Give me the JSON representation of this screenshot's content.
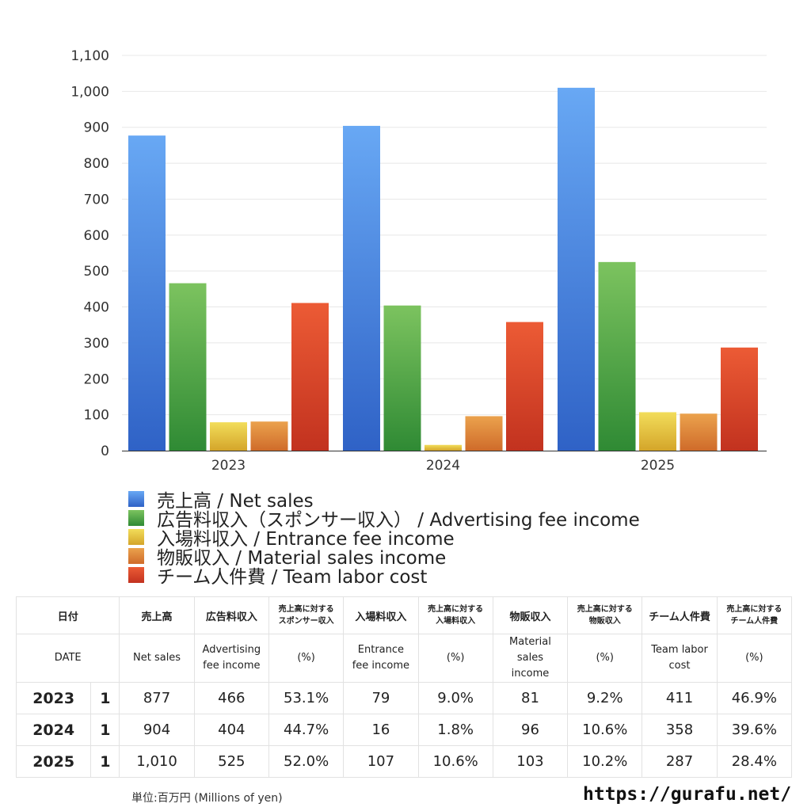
{
  "chart_data": {
    "type": "bar",
    "categories": [
      "2023",
      "2024",
      "2025"
    ],
    "series": [
      {
        "name": "売上高 / Net sales",
        "values": [
          877,
          904,
          1010
        ]
      },
      {
        "name": "広告料収入（スポンサー収入） / Advertising fee income",
        "values": [
          466,
          404,
          525
        ]
      },
      {
        "name": "入場料収入 / Entrance fee income",
        "values": [
          79,
          16,
          107
        ]
      },
      {
        "name": "物販収入 / Material sales income",
        "values": [
          81,
          96,
          103
        ]
      },
      {
        "name": "チーム人件費 / Team labor cost",
        "values": [
          411,
          358,
          287
        ]
      }
    ],
    "colors": [
      [
        "#68a8f4",
        "#2f62c6"
      ],
      [
        "#7cc35f",
        "#2f8a34"
      ],
      [
        "#f2dd5a",
        "#d4a52a"
      ],
      [
        "#eba24d",
        "#cf6b2a"
      ],
      [
        "#ec5b35",
        "#c2321f"
      ]
    ],
    "ylim": [
      0,
      1100
    ],
    "yticks": [
      "0",
      "100",
      "200",
      "300",
      "400",
      "500",
      "600",
      "700",
      "800",
      "900",
      "1,000",
      "1,100"
    ],
    "grid": true,
    "legend_position": "bottom-left"
  },
  "legend": [
    "売上高 / Net sales",
    "広告料収入（スポンサー収入） / Advertising fee income",
    "入場料収入 / Entrance fee income",
    "物販収入 / Material sales income",
    "チーム人件費 / Team labor cost"
  ],
  "table": {
    "header_jp": [
      "日付",
      "売上高",
      "広告料収入",
      "売上高に対する\nスポンサー収入",
      "入場料収入",
      "売上高に対する\n入場料収入",
      "物販収入",
      "売上高に対する\n物販収入",
      "チーム人件費",
      "売上高に対する\nチーム人件費"
    ],
    "header_en": [
      "DATE",
      "Net sales",
      "Advertising\nfee income",
      "(%)",
      "Entrance\nfee income",
      "(%)",
      "Material\nsales\nincome",
      "(%)",
      "Team labor\ncost",
      "(%)"
    ],
    "rows": [
      {
        "year": "2023",
        "count": "1",
        "cells": [
          "877",
          "466",
          "53.1%",
          "79",
          "9.0%",
          "81",
          "9.2%",
          "411",
          "46.9%"
        ]
      },
      {
        "year": "2024",
        "count": "1",
        "cells": [
          "904",
          "404",
          "44.7%",
          "16",
          "1.8%",
          "96",
          "10.6%",
          "358",
          "39.6%"
        ]
      },
      {
        "year": "2025",
        "count": "1",
        "cells": [
          "1,010",
          "525",
          "52.0%",
          "107",
          "10.6%",
          "103",
          "10.2%",
          "287",
          "28.4%"
        ]
      }
    ]
  },
  "footer": {
    "unit": "単位:百万円 (Millions of yen)",
    "url": "https://gurafu.net/"
  }
}
